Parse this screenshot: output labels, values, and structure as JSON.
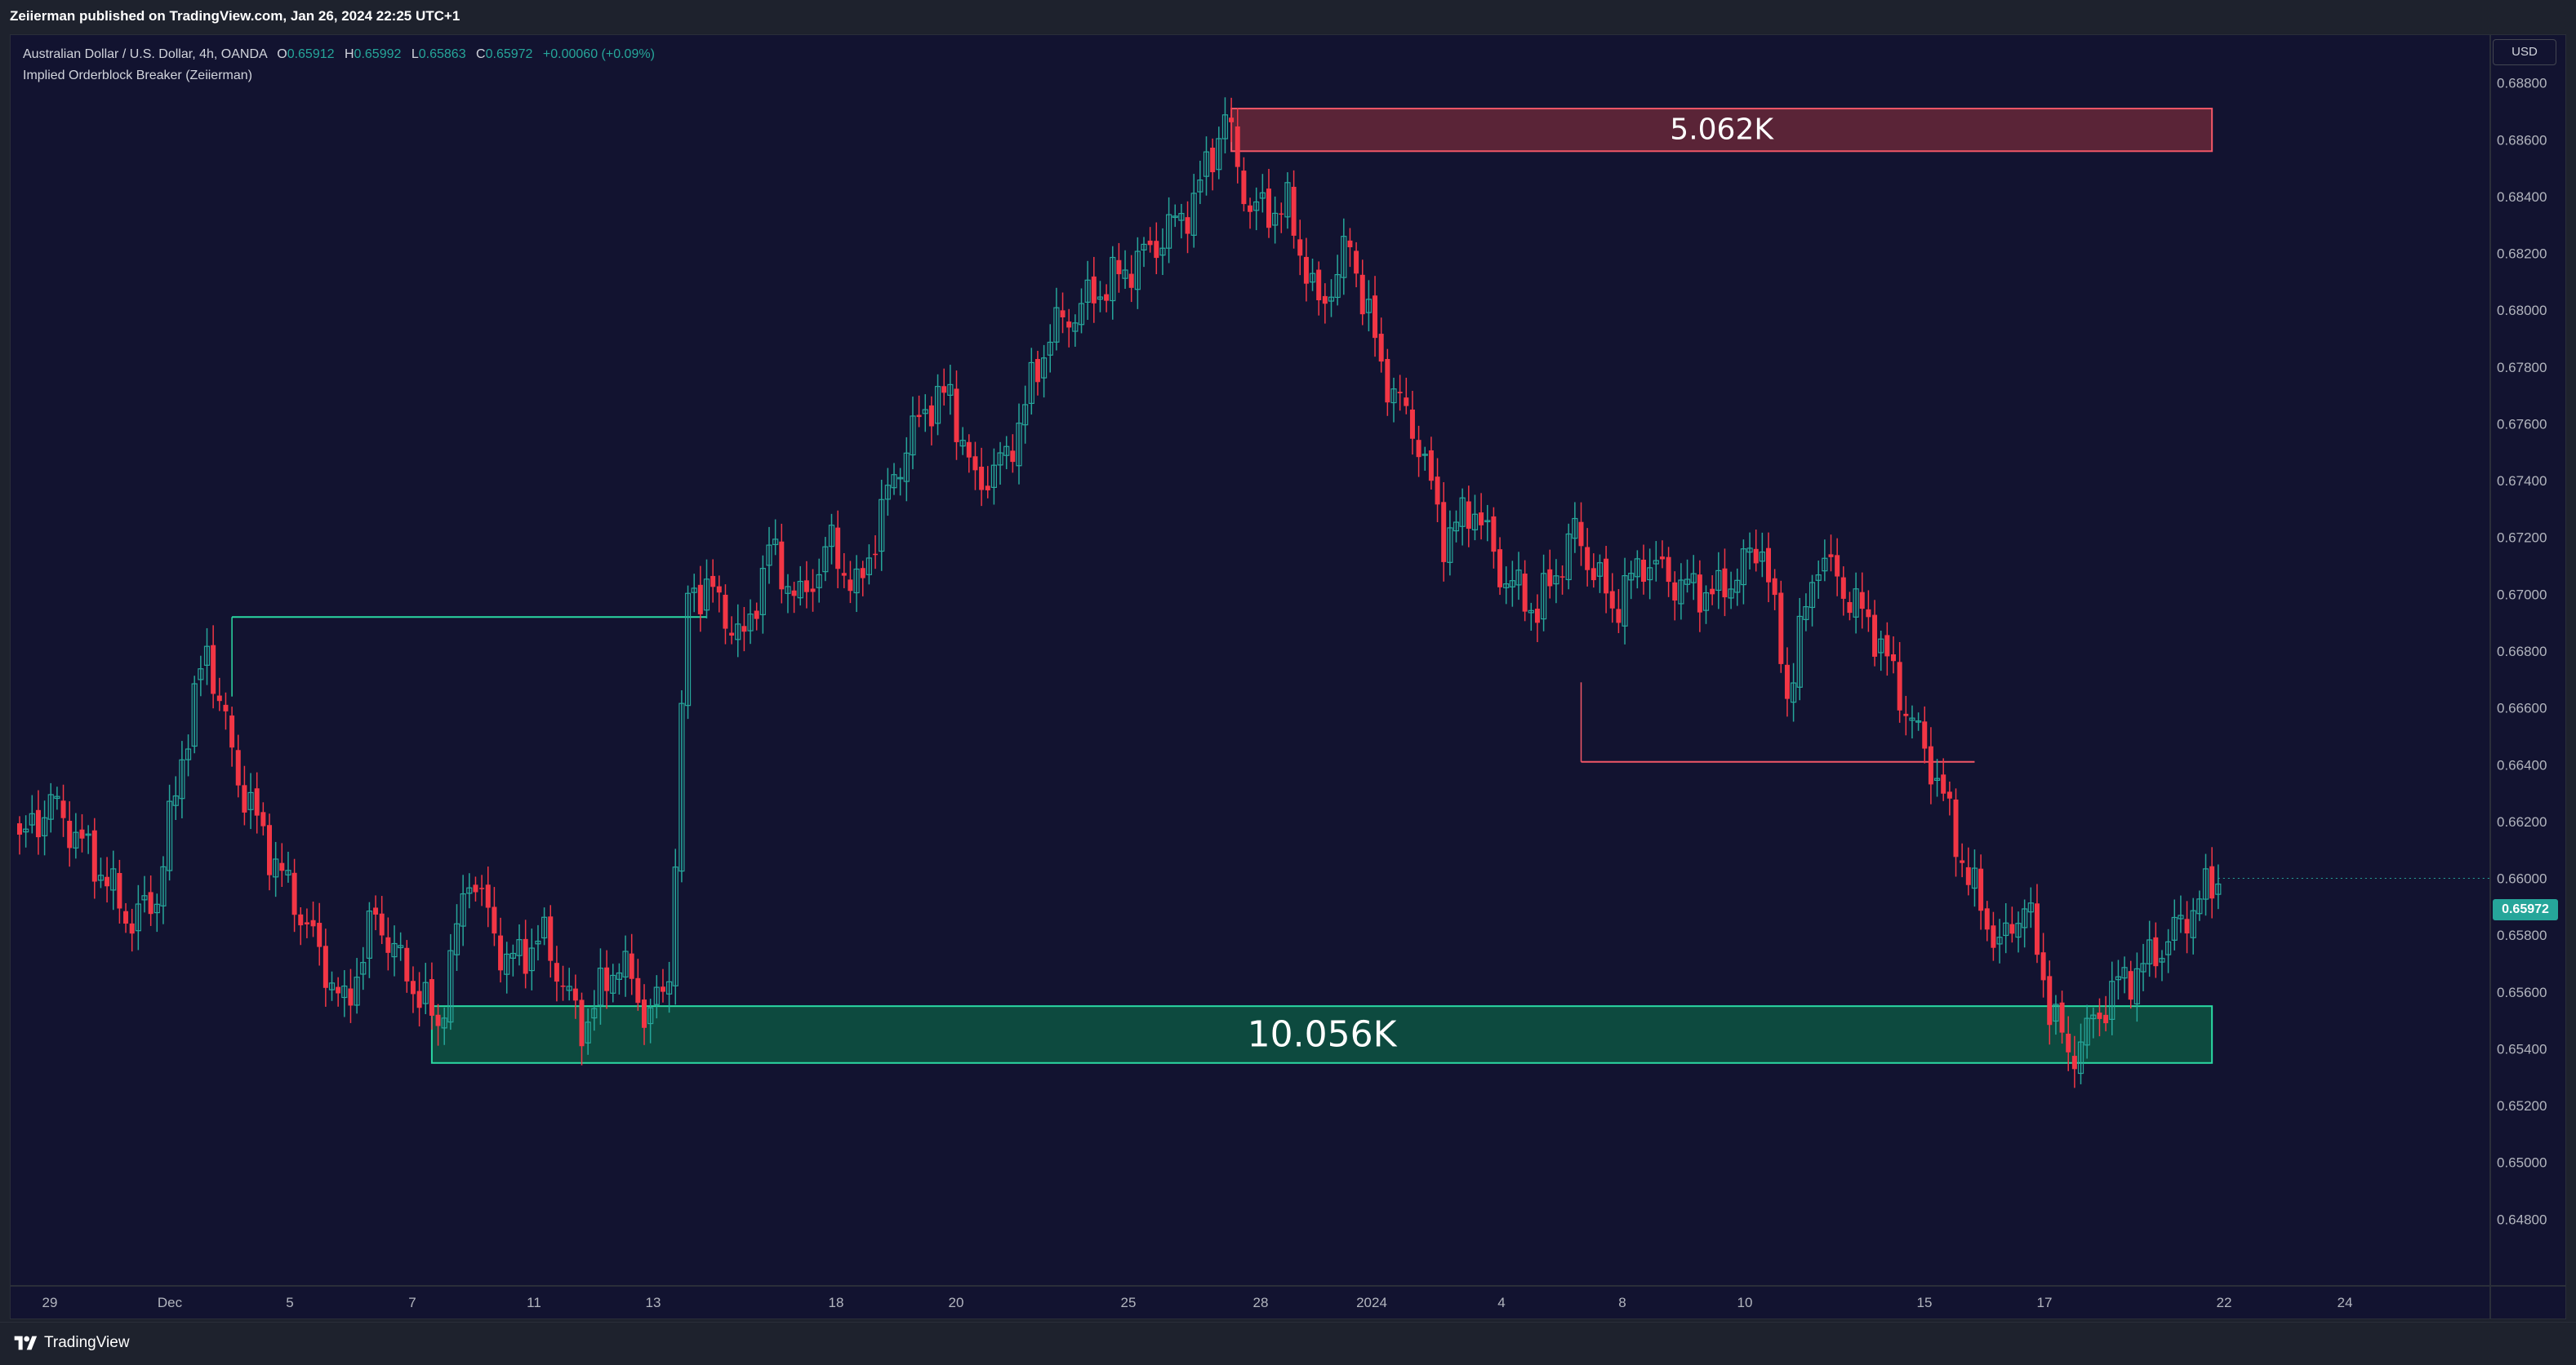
{
  "header": {
    "publisher": "Zeiierman published on TradingView.com, Jan 26, 2024 22:25 UTC+1"
  },
  "legend": {
    "symbol": "Australian Dollar / U.S. Dollar, 4h, OANDA",
    "o_label": "O",
    "o_value": "0.65912",
    "h_label": "H",
    "h_value": "0.65992",
    "l_label": "L",
    "l_value": "0.65863",
    "c_label": "C",
    "c_value": "0.65972",
    "change": "+0.00060 (+0.09%)",
    "indicator": "Implied Orderblock Breaker (Zeiierman)"
  },
  "currency": "USD",
  "last_price": "0.65972",
  "footer": {
    "brand": "TradingView"
  },
  "colors": {
    "background": "#121330",
    "up": "#26a69a",
    "down": "#f23645",
    "bear_zone_fill": "#5a2437",
    "bull_zone_fill": "#0d4a3f"
  },
  "chart_data": {
    "type": "candlestick",
    "ylim": [
      0.6466,
      0.6894
    ],
    "y_ticks": [
      "0.68800",
      "0.68600",
      "0.68400",
      "0.68200",
      "0.68000",
      "0.67800",
      "0.67600",
      "0.67400",
      "0.67200",
      "0.67000",
      "0.66800",
      "0.66600",
      "0.66400",
      "0.66200",
      "0.66000",
      "0.65800",
      "0.65600",
      "0.65400",
      "0.65200",
      "0.65000",
      "0.64800"
    ],
    "x_ticks": [
      "29",
      "Dec",
      "5",
      "7",
      "11",
      "13",
      "18",
      "20",
      "25",
      "28",
      "2024",
      "4",
      "8",
      "10",
      "15",
      "17",
      "22",
      "24"
    ],
    "price_path": [
      [
        0,
        0.6612
      ],
      [
        5,
        0.6627
      ],
      [
        12,
        0.6606
      ],
      [
        18,
        0.6584
      ],
      [
        22,
        0.6594
      ],
      [
        26,
        0.6643
      ],
      [
        30,
        0.6681
      ],
      [
        35,
        0.6635
      ],
      [
        40,
        0.661
      ],
      [
        46,
        0.6583
      ],
      [
        52,
        0.6554
      ],
      [
        57,
        0.6587
      ],
      [
        62,
        0.6566
      ],
      [
        67,
        0.6548
      ],
      [
        72,
        0.6603
      ],
      [
        78,
        0.657
      ],
      [
        84,
        0.6579
      ],
      [
        90,
        0.6547
      ],
      [
        96,
        0.6572
      ],
      [
        100,
        0.6553
      ],
      [
        102,
        0.6555
      ],
      [
        104,
        0.6566
      ],
      [
        107,
        0.6699
      ],
      [
        110,
        0.6703
      ],
      [
        116,
        0.6683
      ],
      [
        120,
        0.6716
      ],
      [
        125,
        0.6697
      ],
      [
        130,
        0.6718
      ],
      [
        134,
        0.67
      ],
      [
        140,
        0.6742
      ],
      [
        145,
        0.6766
      ],
      [
        149,
        0.677
      ],
      [
        153,
        0.6738
      ],
      [
        158,
        0.6748
      ],
      [
        165,
        0.6792
      ],
      [
        173,
        0.6807
      ],
      [
        181,
        0.6821
      ],
      [
        188,
        0.6838
      ],
      [
        193,
        0.6868
      ],
      [
        197,
        0.6835
      ],
      [
        203,
        0.6836
      ],
      [
        208,
        0.68
      ],
      [
        213,
        0.6823
      ],
      [
        218,
        0.678
      ],
      [
        224,
        0.6754
      ],
      [
        228,
        0.672
      ],
      [
        233,
        0.6731
      ],
      [
        237,
        0.6708
      ],
      [
        243,
        0.6694
      ],
      [
        249,
        0.6722
      ],
      [
        255,
        0.6695
      ],
      [
        260,
        0.6712
      ],
      [
        266,
        0.6703
      ],
      [
        272,
        0.67
      ],
      [
        279,
        0.6718
      ],
      [
        283,
        0.6665
      ],
      [
        288,
        0.6714
      ],
      [
        293,
        0.6699
      ],
      [
        297,
        0.6687
      ],
      [
        302,
        0.666
      ],
      [
        307,
        0.6635
      ],
      [
        312,
        0.66
      ],
      [
        317,
        0.6575
      ],
      [
        321,
        0.6592
      ],
      [
        325,
        0.6556
      ],
      [
        328,
        0.6537
      ],
      [
        332,
        0.6549
      ],
      [
        336,
        0.6563
      ],
      [
        340,
        0.6569
      ],
      [
        344,
        0.6578
      ],
      [
        348,
        0.659
      ],
      [
        352,
        0.66
      ]
    ],
    "orderblocks": [
      {
        "label": "5.062K",
        "type": "bearish",
        "top": 0.6871,
        "bottom": 0.6856,
        "start_bar": 194,
        "end_bar": 351
      },
      {
        "label": "10.056K",
        "type": "bullish",
        "top": 0.6555,
        "bottom": 0.6535,
        "start_bar": 66,
        "end_bar": 351
      }
    ],
    "breaker_lines": [
      {
        "type": "bullish",
        "price": 0.6692,
        "start_bar": 34,
        "end_bar": 110
      },
      {
        "type": "bearish",
        "price": 0.6641,
        "start_bar": 250,
        "end_bar": 313
      }
    ]
  }
}
